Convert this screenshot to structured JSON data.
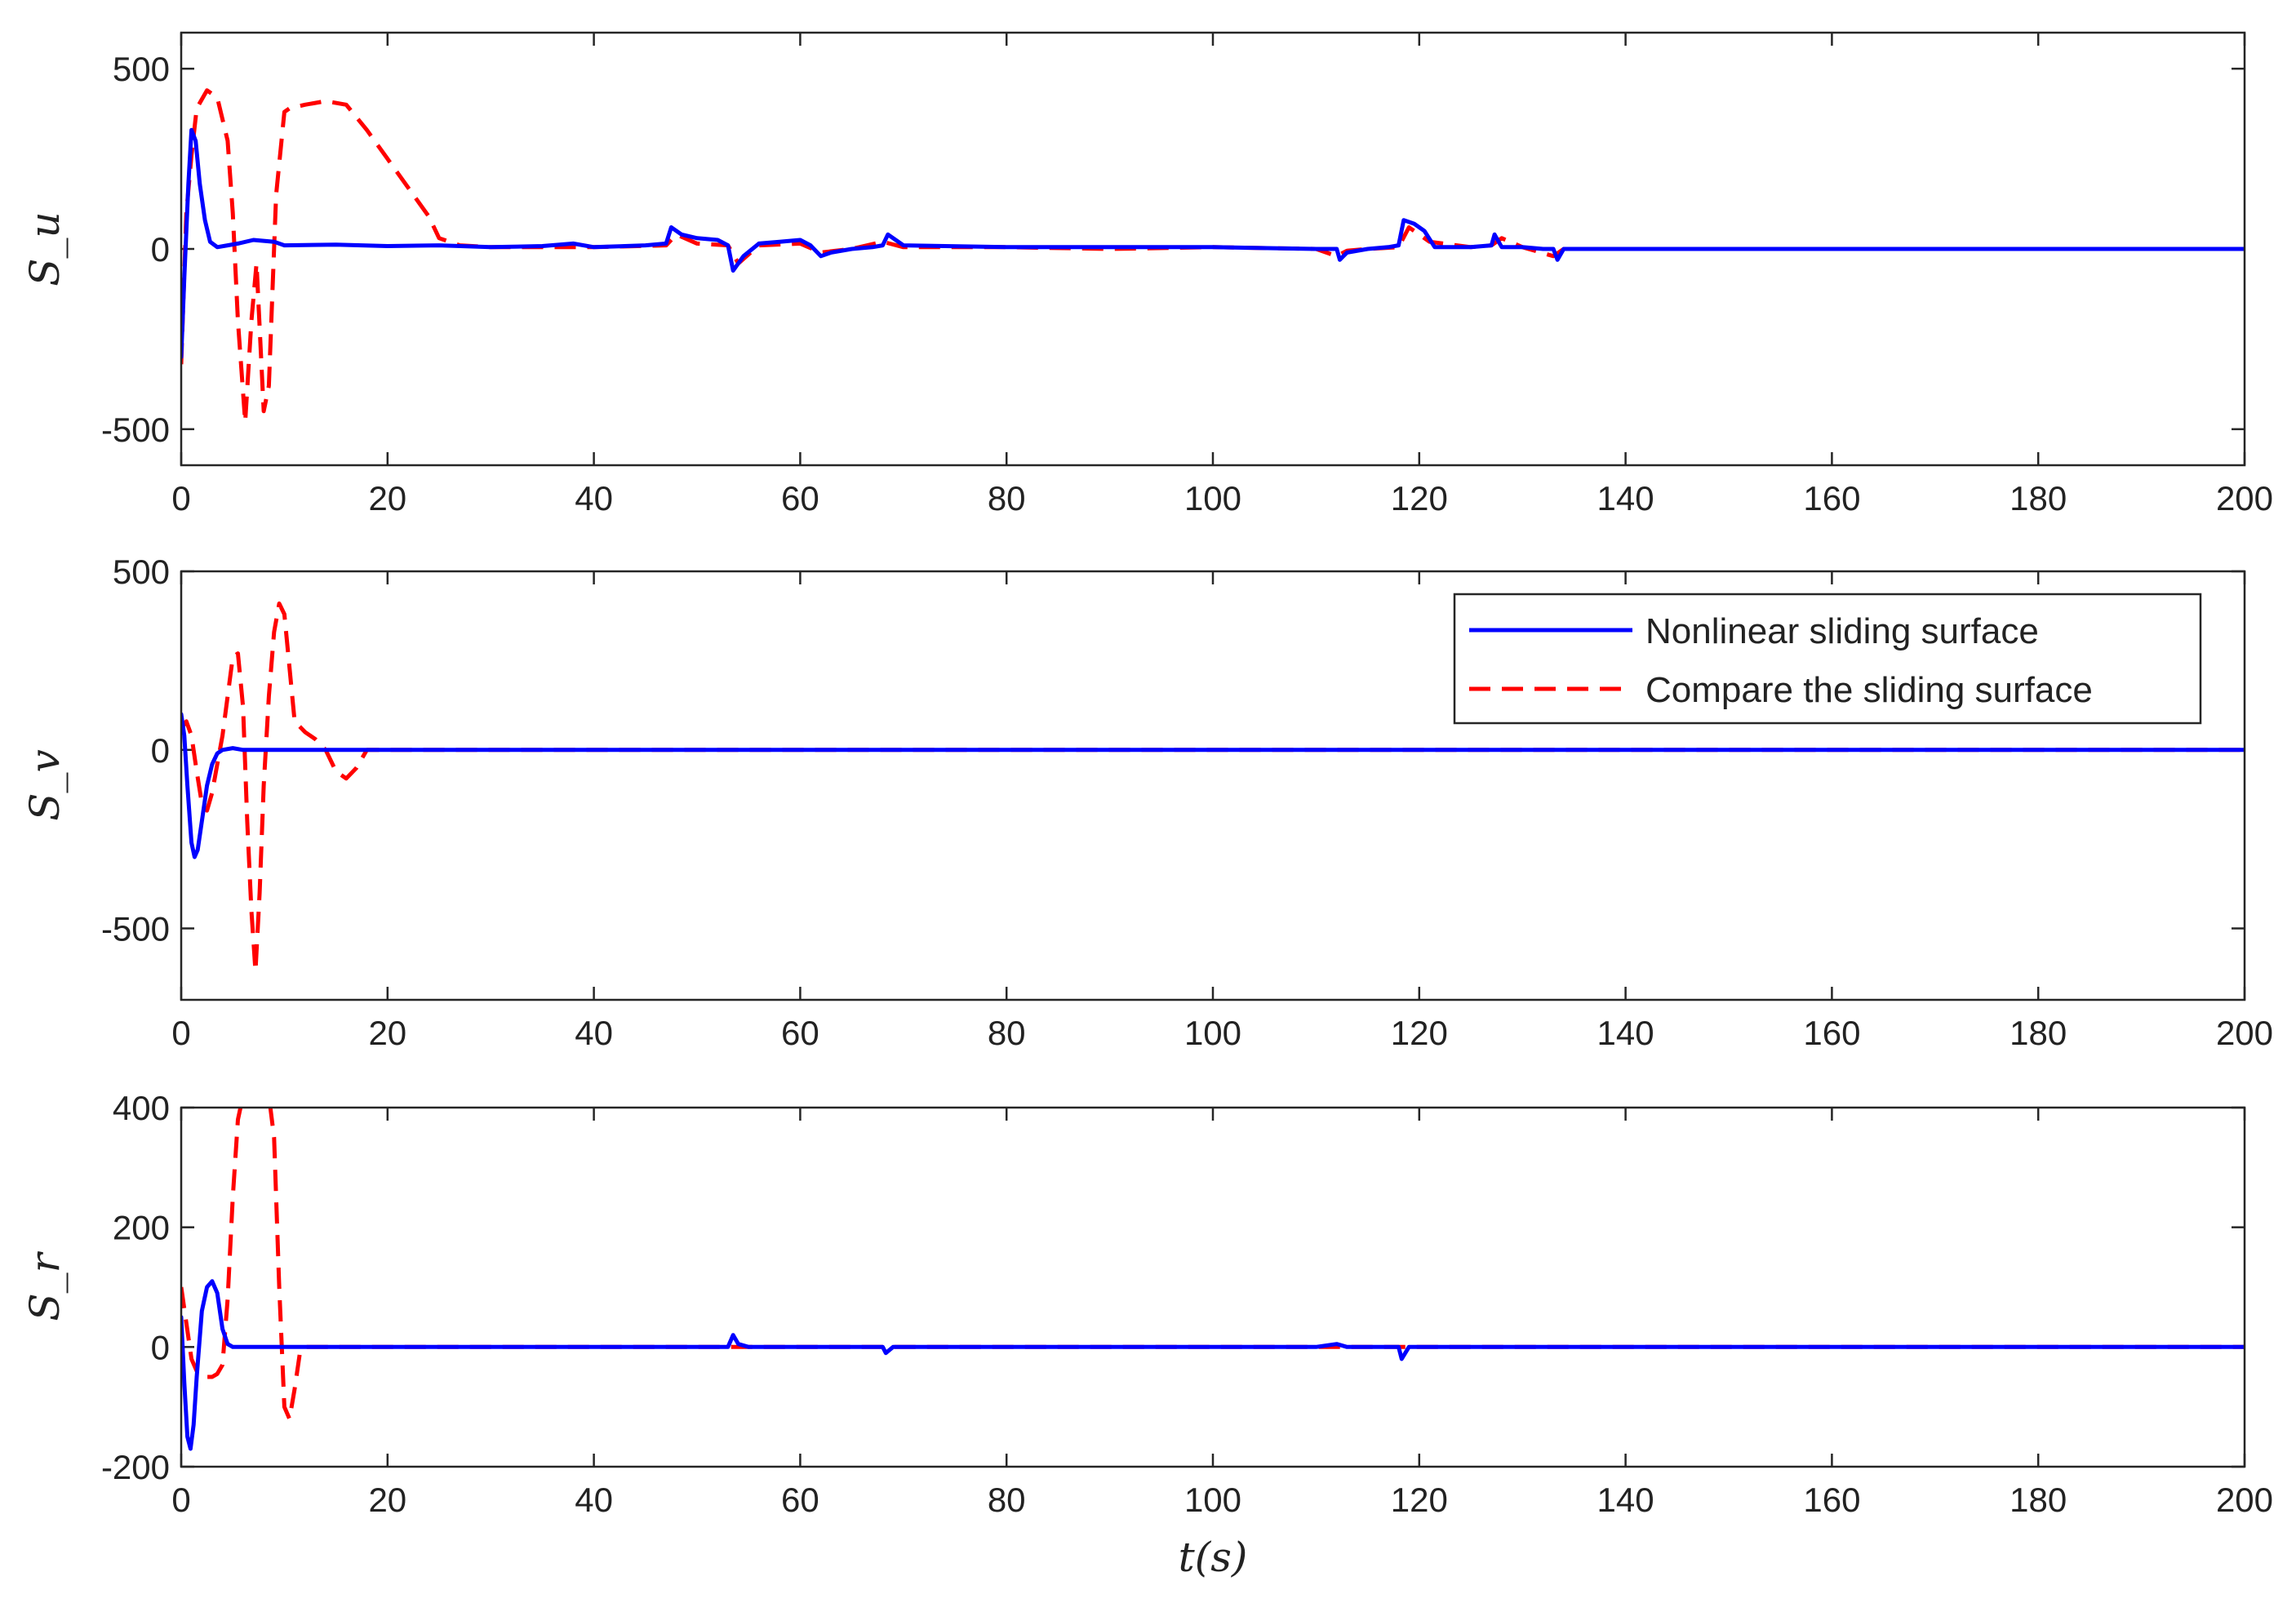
{
  "chart_data": [
    {
      "type": "line",
      "ylabel": "S_u",
      "xlabel": "",
      "xlim": [
        0,
        200
      ],
      "ylim": [
        -600,
        600
      ],
      "xticks": [
        0,
        20,
        40,
        60,
        80,
        100,
        120,
        140,
        160,
        180,
        200
      ],
      "yticks": [
        -500,
        0,
        500
      ],
      "xtick_labels": [
        "0",
        "20",
        "40",
        "60",
        "80",
        "100",
        "120",
        "140",
        "160",
        "180",
        "200"
      ],
      "ytick_labels": [
        "-500",
        "0",
        "500"
      ],
      "legend": false,
      "series": [
        {
          "name": "Nonlinear sliding surface",
          "color": "#0000ff",
          "style": "solid",
          "x": [
            0,
            0.3,
            0.7,
            1.0,
            1.4,
            1.8,
            2.3,
            2.8,
            3.5,
            4.5,
            5.5,
            7,
            9,
            10,
            15,
            20,
            25,
            30,
            35,
            38,
            40,
            45,
            47,
            47.5,
            48.5,
            50,
            52,
            53,
            53.5,
            54.5,
            56,
            58,
            60,
            61,
            62,
            63,
            65,
            67,
            68,
            68.5,
            70,
            80,
            90,
            100,
            110,
            112,
            112.3,
            113,
            115,
            117,
            118,
            118.5,
            119.5,
            120.5,
            121.5,
            125,
            127,
            127.3,
            128,
            130,
            132,
            133,
            133.4,
            134,
            140,
            150,
            160,
            170,
            180,
            190,
            200
          ],
          "y": [
            -300,
            -80,
            180,
            330,
            300,
            180,
            80,
            20,
            5,
            10,
            15,
            25,
            20,
            10,
            12,
            8,
            10,
            5,
            8,
            15,
            5,
            10,
            15,
            60,
            40,
            30,
            25,
            10,
            -60,
            -20,
            15,
            20,
            25,
            10,
            -20,
            -10,
            0,
            5,
            10,
            40,
            10,
            5,
            5,
            5,
            0,
            0,
            -30,
            -10,
            0,
            5,
            10,
            80,
            70,
            50,
            5,
            5,
            10,
            40,
            5,
            5,
            0,
            0,
            -30,
            0,
            0,
            0,
            0,
            0,
            0,
            0,
            0
          ]
        },
        {
          "name": "Compare the sliding surface",
          "color": "#ff0000",
          "style": "dashed",
          "x": [
            0,
            0.5,
            1.0,
            1.5,
            2.5,
            3.5,
            4.5,
            5.0,
            5.5,
            6.2,
            6.8,
            7.3,
            8.0,
            8.5,
            9.2,
            10.0,
            10.5,
            12,
            14,
            16,
            18,
            20,
            22,
            24,
            25,
            27,
            30,
            40,
            47,
            48,
            50,
            53,
            54,
            56,
            60,
            62,
            65,
            68,
            70,
            80,
            90,
            100,
            110,
            112,
            113,
            115,
            118,
            119,
            121,
            125,
            127,
            128,
            130,
            133,
            134,
            140,
            150,
            160,
            170,
            180,
            190,
            200
          ],
          "y": [
            -320,
            100,
            260,
            390,
            440,
            420,
            300,
            100,
            -200,
            -480,
            -200,
            -40,
            -450,
            -380,
            150,
            380,
            390,
            400,
            410,
            400,
            330,
            250,
            170,
            90,
            30,
            10,
            5,
            5,
            10,
            40,
            15,
            10,
            -40,
            10,
            15,
            -10,
            0,
            20,
            5,
            5,
            0,
            5,
            0,
            -20,
            -5,
            0,
            5,
            60,
            20,
            5,
            10,
            30,
            5,
            -20,
            0,
            0,
            0,
            0,
            0,
            0,
            0,
            0
          ]
        }
      ]
    },
    {
      "type": "line",
      "ylabel": "S_v",
      "xlabel": "",
      "xlim": [
        0,
        200
      ],
      "ylim": [
        -700,
        500
      ],
      "xticks": [
        0,
        20,
        40,
        60,
        80,
        100,
        120,
        140,
        160,
        180,
        200
      ],
      "yticks": [
        -500,
        0,
        500
      ],
      "xtick_labels": [
        "0",
        "20",
        "40",
        "60",
        "80",
        "100",
        "120",
        "140",
        "160",
        "180",
        "200"
      ],
      "ytick_labels": [
        "-500",
        "0",
        "500"
      ],
      "legend": true,
      "legend_position": "top-right",
      "series": [
        {
          "name": "Nonlinear sliding surface",
          "color": "#0000ff",
          "style": "solid",
          "x": [
            0,
            0.3,
            0.6,
            1.0,
            1.3,
            1.6,
            2.0,
            2.5,
            3.0,
            3.5,
            4.0,
            5.0,
            6,
            10,
            20,
            40,
            60,
            80,
            100,
            120,
            140,
            160,
            180,
            200
          ],
          "y": [
            100,
            40,
            -100,
            -260,
            -300,
            -280,
            -200,
            -100,
            -40,
            -10,
            0,
            5,
            0,
            0,
            0,
            0,
            0,
            0,
            0,
            0,
            0,
            0,
            0,
            0
          ],
          "legend_label": "Nonlinear sliding surface"
        },
        {
          "name": "Compare the sliding surface",
          "color": "#ff0000",
          "style": "dashed",
          "x": [
            0,
            0.5,
            1.0,
            1.5,
            2.0,
            2.5,
            3.0,
            3.5,
            4.0,
            4.5,
            5.0,
            5.5,
            6.0,
            6.4,
            6.8,
            7.2,
            7.6,
            8.0,
            8.5,
            9.0,
            9.5,
            10.0,
            10.5,
            11.0,
            12,
            13,
            14,
            15,
            16,
            17,
            18,
            20,
            40,
            60,
            80,
            100,
            120,
            140,
            160,
            180,
            200
          ],
          "y": [
            60,
            80,
            40,
            -60,
            -150,
            -170,
            -120,
            -40,
            40,
            150,
            260,
            270,
            120,
            -200,
            -450,
            -620,
            -400,
            -100,
            150,
            330,
            410,
            380,
            230,
            80,
            50,
            30,
            0,
            -60,
            -80,
            -50,
            0,
            0,
            0,
            0,
            0,
            0,
            0,
            0,
            0,
            0,
            0
          ],
          "legend_label": "Compare the sliding surface"
        }
      ]
    },
    {
      "type": "line",
      "ylabel": "S_r",
      "xlabel": "t(s)",
      "xlim": [
        0,
        200
      ],
      "ylim": [
        -200,
        400
      ],
      "xticks": [
        0,
        20,
        40,
        60,
        80,
        100,
        120,
        140,
        160,
        180,
        200
      ],
      "yticks": [
        -200,
        0,
        200,
        400
      ],
      "xtick_labels": [
        "0",
        "20",
        "40",
        "60",
        "80",
        "100",
        "120",
        "140",
        "160",
        "180",
        "200"
      ],
      "ytick_labels": [
        "-200",
        "0",
        "200",
        "400"
      ],
      "legend": false,
      "series": [
        {
          "name": "Nonlinear sliding surface",
          "color": "#0000ff",
          "style": "solid",
          "x": [
            0,
            0.3,
            0.6,
            0.9,
            1.2,
            1.5,
            2.0,
            2.5,
            3.0,
            3.5,
            4.0,
            4.5,
            5.0,
            6,
            10,
            20,
            30,
            40,
            50,
            53,
            53.5,
            54,
            55,
            60,
            68,
            68.3,
            69,
            80,
            90,
            100,
            110,
            112,
            113,
            118,
            118.3,
            119,
            130,
            140,
            150,
            160,
            170,
            180,
            190,
            200
          ],
          "y": [
            50,
            -60,
            -150,
            -170,
            -130,
            -50,
            60,
            100,
            110,
            90,
            30,
            5,
            0,
            0,
            0,
            0,
            0,
            0,
            0,
            0,
            20,
            5,
            0,
            0,
            0,
            -10,
            0,
            0,
            0,
            0,
            0,
            5,
            0,
            0,
            -20,
            0,
            0,
            0,
            0,
            0,
            0,
            0,
            0,
            0
          ]
        },
        {
          "name": "Compare the sliding surface",
          "color": "#ff0000",
          "style": "dashed",
          "x": [
            0,
            0.5,
            1.0,
            1.5,
            2.0,
            2.5,
            3.0,
            3.5,
            4.0,
            4.5,
            5.0,
            5.5,
            6.0,
            6.5,
            7.0,
            8.0,
            8.5,
            9.0,
            9.5,
            10.0,
            10.5,
            11.0,
            11.5,
            12,
            14,
            20,
            40,
            60,
            80,
            100,
            120,
            140,
            160,
            180,
            200
          ],
          "y": [
            100,
            40,
            -20,
            -40,
            -45,
            -50,
            -50,
            -45,
            -30,
            80,
            250,
            380,
            420,
            420,
            420,
            420,
            420,
            350,
            100,
            -100,
            -120,
            -70,
            -10,
            0,
            0,
            0,
            0,
            0,
            0,
            0,
            0,
            0,
            0,
            0,
            0
          ]
        }
      ]
    }
  ]
}
